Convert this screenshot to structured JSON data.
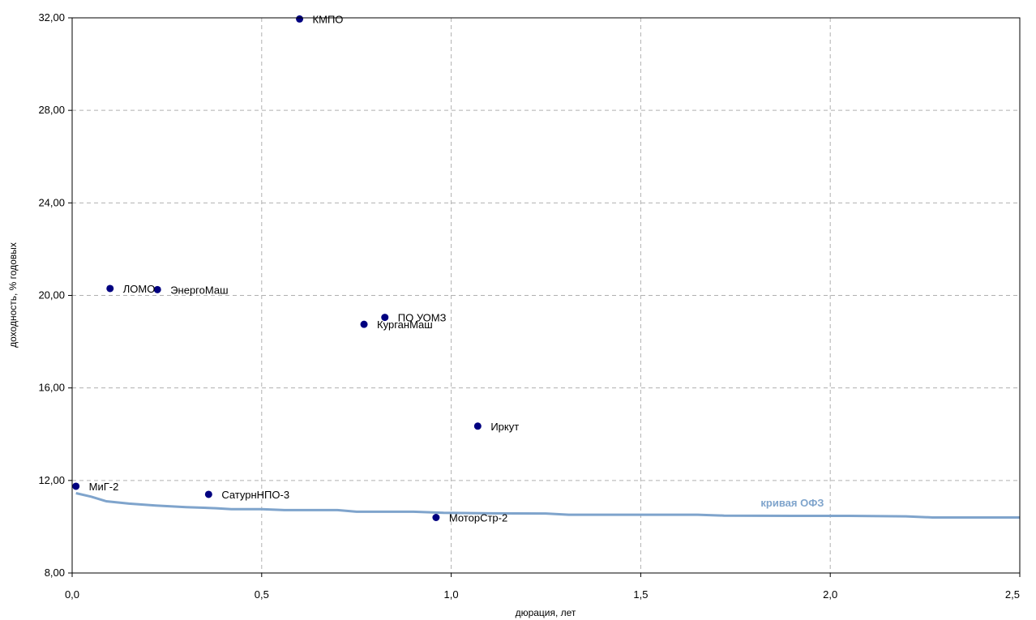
{
  "chart_data": {
    "type": "scatter",
    "xlabel": "дюрация, лет",
    "ylabel": "доходность, % годовых",
    "xlim": [
      0,
      2.5
    ],
    "ylim": [
      8,
      32
    ],
    "x_ticks": [
      0,
      0.5,
      1.0,
      1.5,
      2.0,
      2.5
    ],
    "x_tick_labels": [
      "0,0",
      "0,5",
      "1,0",
      "1,5",
      "2,0",
      "2,5"
    ],
    "y_ticks": [
      8,
      12,
      16,
      20,
      24,
      28,
      32
    ],
    "y_tick_labels": [
      "8,00",
      "12,00",
      "16,00",
      "20,00",
      "24,00",
      "28,00",
      "32,00"
    ],
    "grid": true,
    "points_color": "#000080",
    "points": [
      {
        "label": "КМПО",
        "x": 0.6,
        "y": 31.95
      },
      {
        "label": "ЛОМО",
        "x": 0.1,
        "y": 20.3
      },
      {
        "label": "ЭнергоМаш",
        "x": 0.225,
        "y": 20.25
      },
      {
        "label": "ПО УОМЗ",
        "x": 0.825,
        "y": 19.05
      },
      {
        "label": "КурганМаш",
        "x": 0.77,
        "y": 18.75
      },
      {
        "label": "Иркут",
        "x": 1.07,
        "y": 14.35
      },
      {
        "label": "МиГ-2",
        "x": 0.01,
        "y": 11.75
      },
      {
        "label": "СатурнНПО-3",
        "x": 0.36,
        "y": 11.4
      },
      {
        "label": "МоторСтр-2",
        "x": 0.96,
        "y": 10.4
      }
    ],
    "series": [
      {
        "name": "кривая ОФЗ",
        "type": "line",
        "color": "#7FA4CC",
        "x": [
          0.01,
          0.05,
          0.09,
          0.15,
          0.22,
          0.3,
          0.38,
          0.42,
          0.5,
          0.56,
          0.7,
          0.75,
          0.9,
          0.98,
          1.1,
          1.25,
          1.31,
          1.45,
          1.65,
          1.72,
          1.9,
          2.05,
          2.2,
          2.27,
          2.4,
          2.5
        ],
        "y": [
          11.45,
          11.3,
          11.1,
          11.0,
          10.92,
          10.85,
          10.8,
          10.76,
          10.76,
          10.72,
          10.72,
          10.65,
          10.65,
          10.6,
          10.58,
          10.57,
          10.52,
          10.52,
          10.52,
          10.48,
          10.47,
          10.47,
          10.45,
          10.4,
          10.4,
          10.4
        ]
      }
    ]
  }
}
